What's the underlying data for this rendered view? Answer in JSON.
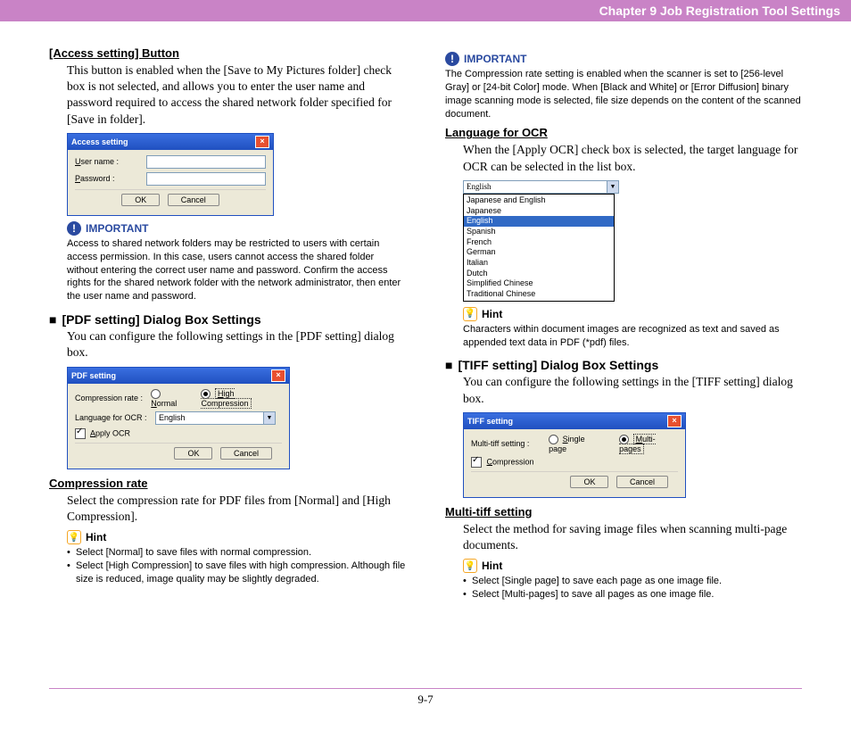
{
  "chapter_bar": "Chapter 9   Job Registration Tool Settings",
  "page_number": "9-7",
  "left": {
    "access_setting": {
      "heading": "[Access setting] Button",
      "body": "This button is enabled when the [Save to My Pictures folder] check box is not selected, and allows you to enter the user name and password required to access the shared network folder specified for [Save in folder].",
      "dialog": {
        "title": "Access setting",
        "user_label": "User name :",
        "pass_label": "Password :",
        "ok": "OK",
        "cancel": "Cancel"
      },
      "important_label": "IMPORTANT",
      "important_text": "Access to shared network folders may be restricted to users with certain access permission. In this case, users cannot access the shared folder without entering the correct user name and password. Confirm the access rights for the shared network folder with the network administrator, then enter the user name and password."
    },
    "pdf_section": {
      "heading": "[PDF setting] Dialog Box Settings",
      "body": "You can configure the following settings in the [PDF setting] dialog box.",
      "dialog": {
        "title": "PDF setting",
        "comp_label": "Compression rate :",
        "radio_normal": "Normal",
        "radio_high": "High Compression",
        "lang_label": "Language for OCR :",
        "lang_value": "English",
        "apply_ocr": "Apply OCR",
        "ok": "OK",
        "cancel": "Cancel"
      }
    },
    "compression": {
      "heading": "Compression rate",
      "body": "Select the compression rate for PDF files from [Normal] and [High Compression].",
      "hint_label": "Hint",
      "bullets": [
        "Select [Normal] to save files with normal compression.",
        "Select [High Compression] to save files with high compression. Although file size is reduced, image quality may be slightly degraded."
      ]
    }
  },
  "right": {
    "top_important": {
      "label": "IMPORTANT",
      "text": "The Compression rate setting is enabled when the scanner is set to [256-level Gray] or [24-bit Color] mode. When [Black and White] or [Error Diffusion] binary image scanning mode is selected, file size depends on the content of the scanned document."
    },
    "language_ocr": {
      "heading": "Language for OCR",
      "body": "When the [Apply OCR] check box is selected, the target language for OCR can be selected in the list box.",
      "combo_value": "English",
      "options": [
        "Japanese and English",
        "Japanese",
        "English",
        "Spanish",
        "French",
        "German",
        "Italian",
        "Dutch",
        "Simplified Chinese",
        "Traditional Chinese"
      ],
      "selected_index": 2,
      "hint_label": "Hint",
      "hint_text": "Characters within document images are recognized as text and saved as appended text data in PDF (*pdf) files."
    },
    "tiff_section": {
      "heading": "[TIFF setting] Dialog Box Settings",
      "body": "You can configure the following settings in the [TIFF setting] dialog box.",
      "dialog": {
        "title": "TIFF setting",
        "multitiff_label": "Multi-tiff setting :",
        "radio_single": "Single page",
        "radio_multi": "Multi-pages",
        "compression_check": "Compression",
        "ok": "OK",
        "cancel": "Cancel"
      }
    },
    "multitiff": {
      "heading": "Multi-tiff setting",
      "body": "Select the method for saving image files when scanning multi-page documents.",
      "hint_label": "Hint",
      "bullets": [
        "Select [Single page] to save each page as one image file.",
        "Select [Multi-pages] to save all pages as one image file."
      ]
    }
  }
}
